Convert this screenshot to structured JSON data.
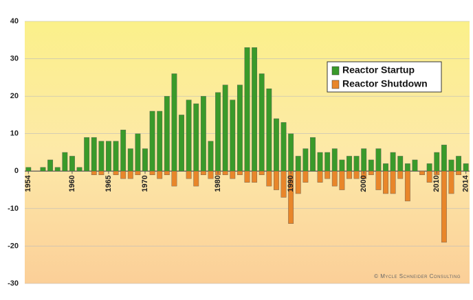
{
  "chart_data": {
    "type": "bar",
    "x": [
      1954,
      1955,
      1956,
      1957,
      1958,
      1959,
      1960,
      1961,
      1962,
      1963,
      1964,
      1965,
      1966,
      1967,
      1968,
      1969,
      1970,
      1971,
      1972,
      1973,
      1974,
      1975,
      1976,
      1977,
      1978,
      1979,
      1980,
      1981,
      1982,
      1983,
      1984,
      1985,
      1986,
      1987,
      1988,
      1989,
      1990,
      1991,
      1992,
      1993,
      1994,
      1995,
      1996,
      1997,
      1998,
      1999,
      2000,
      2001,
      2002,
      2003,
      2004,
      2005,
      2006,
      2007,
      2008,
      2009,
      2010,
      2011,
      2012,
      2013,
      2014
    ],
    "series": [
      {
        "name": "Reactor Startup",
        "color": "#3a9a2a",
        "values": [
          1,
          0,
          1,
          3,
          1,
          5,
          4,
          1,
          9,
          9,
          8,
          8,
          8,
          11,
          6,
          10,
          6,
          16,
          16,
          20,
          26,
          15,
          19,
          18,
          20,
          8,
          21,
          23,
          19,
          23,
          33,
          33,
          26,
          22,
          14,
          13,
          10,
          4,
          6,
          9,
          5,
          5,
          6,
          3,
          4,
          4,
          6,
          3,
          6,
          2,
          5,
          4,
          2,
          3,
          0,
          2,
          5,
          7,
          3,
          4,
          2
        ]
      },
      {
        "name": "Reactor Shutdown",
        "color": "#e8862a",
        "values": [
          0,
          0,
          0,
          0,
          0,
          0,
          0,
          0,
          0,
          -1,
          -1,
          0,
          -1,
          -2,
          -2,
          -1,
          0,
          -1,
          -2,
          -1,
          -4,
          0,
          -2,
          -4,
          -1,
          -2,
          -1,
          -1,
          -2,
          -1,
          -3,
          -3,
          -1,
          -4,
          -5,
          -7,
          -14,
          -6,
          -3,
          0,
          -3,
          -2,
          -4,
          -5,
          -2,
          -2,
          -2,
          -1,
          -5,
          -6,
          -6,
          -2,
          -8,
          0,
          -1,
          -3,
          -1,
          -19,
          -6,
          -1,
          0
        ]
      }
    ],
    "xlim": [
      1953.5,
      2014.5
    ],
    "xticks": [
      1954,
      1960,
      1965,
      1970,
      1980,
      1990,
      2000,
      2010,
      2014
    ],
    "ylim": [
      -30,
      40
    ],
    "yticks": [
      -30,
      -20,
      -10,
      0,
      10,
      20,
      30,
      40
    ],
    "grid": true,
    "legend": "upper right",
    "credit": "© Mycle Schneider Consulting"
  }
}
